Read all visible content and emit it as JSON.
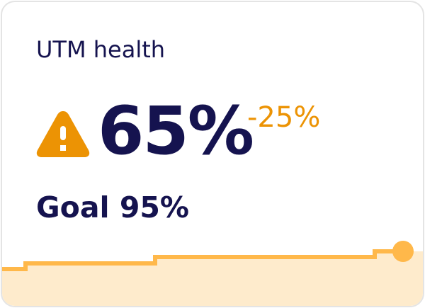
{
  "card": {
    "title": "UTM health",
    "status_icon": "warning-triangle-icon",
    "value": "65%",
    "delta": "-25%",
    "goal": "Goal 95%"
  },
  "colors": {
    "text": "#15134f",
    "warning": "#ec9304",
    "sparkline_line": "#ffb84a",
    "sparkline_fill": "#feebcc"
  }
}
